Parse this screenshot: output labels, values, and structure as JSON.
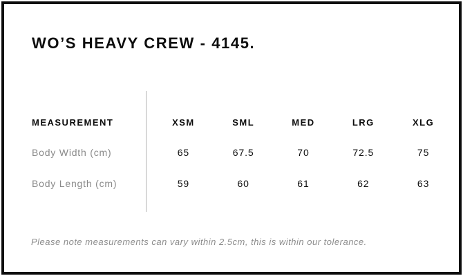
{
  "page": {
    "title": "WO’S HEAVY CREW - 4145.",
    "tolerance_note": "Please note measurements can vary within 2.5cm, this is within our tolerance."
  },
  "size_chart": {
    "measurement_header": "MEASUREMENT",
    "columns": [
      "XSM",
      "SML",
      "MED",
      "LRG",
      "XLG"
    ],
    "rows": [
      {
        "label": "Body Width (cm)",
        "values": [
          "65",
          "67.5",
          "70",
          "72.5",
          "75"
        ]
      },
      {
        "label": "Body Length (cm)",
        "values": [
          "59",
          "60",
          "61",
          "62",
          "63"
        ]
      }
    ]
  },
  "colors": {
    "background": "#ffffff",
    "border": "#0c0c0c",
    "heading_text": "#0c0c0c",
    "muted_text": "#8a8a8a",
    "divider": "#b3b3b3"
  }
}
